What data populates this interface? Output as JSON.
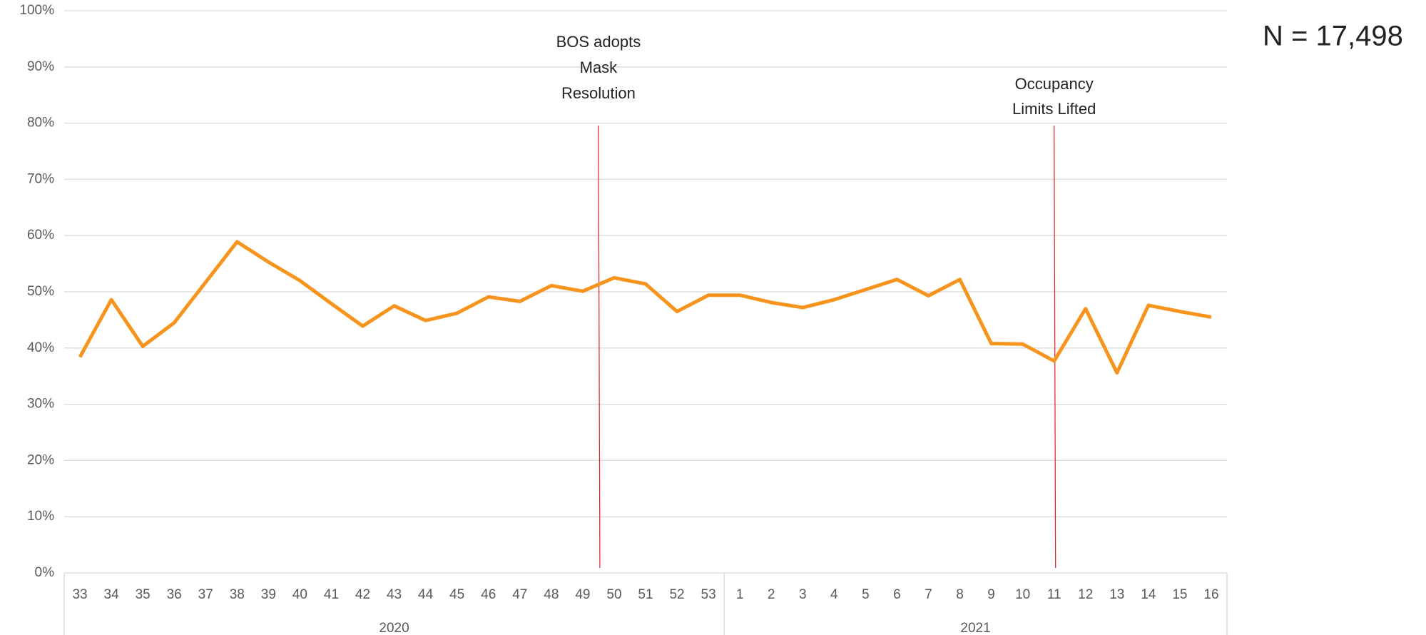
{
  "chart_data": {
    "type": "line",
    "categories": [
      "33",
      "34",
      "35",
      "36",
      "37",
      "38",
      "39",
      "40",
      "41",
      "42",
      "43",
      "44",
      "45",
      "46",
      "47",
      "48",
      "49",
      "50",
      "51",
      "52",
      "53",
      "1",
      "2",
      "3",
      "4",
      "5",
      "6",
      "7",
      "8",
      "9",
      "10",
      "11",
      "12",
      "13",
      "14",
      "15",
      "16"
    ],
    "groups": [
      {
        "label": "2020",
        "count": 21
      },
      {
        "label": "2021",
        "count": 16
      }
    ],
    "series": [
      {
        "color": "#f7941d",
        "values": [
          38.4,
          48.6,
          40.3,
          44.5,
          51.7,
          58.9,
          55.3,
          52.0,
          47.9,
          43.9,
          47.5,
          44.9,
          46.2,
          49.1,
          48.3,
          51.1,
          50.1,
          52.5,
          51.4,
          46.5,
          49.4,
          49.4,
          48.1,
          47.2,
          48.6,
          50.4,
          52.2,
          49.3,
          52.2,
          40.8,
          40.7,
          37.7,
          47.0,
          35.6,
          47.6,
          46.5,
          45.5
        ]
      }
    ],
    "ylim": [
      0,
      100
    ],
    "yticks": [
      {
        "value": 0,
        "label": "0%"
      },
      {
        "value": 10,
        "label": "10%"
      },
      {
        "value": 20,
        "label": "20%"
      },
      {
        "value": 30,
        "label": "30%"
      },
      {
        "value": 40,
        "label": "40%"
      },
      {
        "value": 50,
        "label": "50%"
      },
      {
        "value": 60,
        "label": "60%"
      },
      {
        "value": 70,
        "label": "70%"
      },
      {
        "value": 80,
        "label": "80%"
      },
      {
        "value": 90,
        "label": "90%"
      },
      {
        "value": 100,
        "label": "100%"
      }
    ],
    "grid": true,
    "annotations": [
      {
        "lines": [
          "BOS adopts",
          "Mask",
          "Resolution"
        ],
        "color": "#e02020"
      },
      {
        "lines": [
          "Occupancy",
          "Limits Lifted"
        ],
        "color": "#e02020"
      }
    ],
    "note": "N = 17,498"
  }
}
